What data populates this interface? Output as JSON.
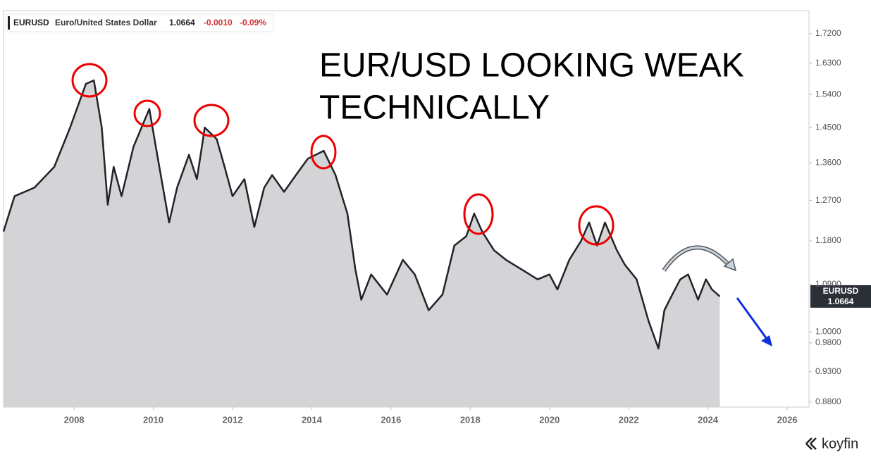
{
  "chart_data": {
    "type": "area",
    "symbol": "EURUSD",
    "name": "Euro/United States Dollar",
    "last": 1.0664,
    "change": "-0.0010",
    "change_pct": "-0.09%",
    "annotation": [
      "EUR/USD LOOKING WEAK",
      "TECHNICALLY"
    ],
    "brand": "koyfin",
    "log_scale": true,
    "xlim": [
      2006.22,
      2026.55
    ],
    "ylim": [
      0.872,
      1.794
    ],
    "xticks": [
      2008,
      2010,
      2012,
      2014,
      2016,
      2018,
      2020,
      2022,
      2024,
      2026
    ],
    "yticks": [
      {
        "value": 1.72,
        "label": "1.7200"
      },
      {
        "value": 1.63,
        "label": "1.6300"
      },
      {
        "value": 1.54,
        "label": "1.5400"
      },
      {
        "value": 1.45,
        "label": "1.4500"
      },
      {
        "value": 1.36,
        "label": "1.3600"
      },
      {
        "value": 1.27,
        "label": "1.2700"
      },
      {
        "value": 1.18,
        "label": "1.1800"
      },
      {
        "value": 1.09,
        "label": "1.0900"
      },
      {
        "value": 1.0,
        "label": "1.0000"
      },
      {
        "value": 0.98,
        "label": "0.9800"
      },
      {
        "value": 0.93,
        "label": "0.9300"
      },
      {
        "value": 0.88,
        "label": "0.8800"
      }
    ],
    "x": [
      2006.22,
      2006.5,
      2007.0,
      2007.5,
      2007.9,
      2008.3,
      2008.5,
      2008.7,
      2008.85,
      2009.0,
      2009.2,
      2009.5,
      2009.9,
      2010.1,
      2010.4,
      2010.6,
      2010.9,
      2011.1,
      2011.3,
      2011.6,
      2011.8,
      2012.0,
      2012.3,
      2012.55,
      2012.8,
      2013.0,
      2013.3,
      2013.6,
      2013.9,
      2014.3,
      2014.6,
      2014.9,
      2015.1,
      2015.25,
      2015.5,
      2015.9,
      2016.3,
      2016.6,
      2016.95,
      2017.3,
      2017.6,
      2017.9,
      2018.1,
      2018.3,
      2018.6,
      2018.9,
      2019.3,
      2019.7,
      2020.0,
      2020.2,
      2020.5,
      2020.8,
      2021.0,
      2021.2,
      2021.4,
      2021.7,
      2021.9,
      2022.2,
      2022.5,
      2022.75,
      2022.9,
      2023.1,
      2023.3,
      2023.5,
      2023.75,
      2023.95,
      2024.1,
      2024.3
    ],
    "series": [
      {
        "name": "EURUSD",
        "color": "#1f2329",
        "fill": "#d4d4d6",
        "values": [
          1.2,
          1.28,
          1.3,
          1.35,
          1.45,
          1.57,
          1.58,
          1.45,
          1.26,
          1.35,
          1.28,
          1.4,
          1.5,
          1.38,
          1.22,
          1.3,
          1.38,
          1.32,
          1.45,
          1.42,
          1.35,
          1.28,
          1.32,
          1.21,
          1.3,
          1.33,
          1.29,
          1.33,
          1.37,
          1.39,
          1.33,
          1.24,
          1.12,
          1.06,
          1.11,
          1.07,
          1.14,
          1.11,
          1.04,
          1.07,
          1.17,
          1.19,
          1.24,
          1.2,
          1.16,
          1.14,
          1.12,
          1.1,
          1.11,
          1.08,
          1.14,
          1.18,
          1.22,
          1.17,
          1.22,
          1.16,
          1.13,
          1.1,
          1.02,
          0.97,
          1.04,
          1.07,
          1.1,
          1.11,
          1.06,
          1.1,
          1.08,
          1.0664
        ]
      }
    ]
  }
}
